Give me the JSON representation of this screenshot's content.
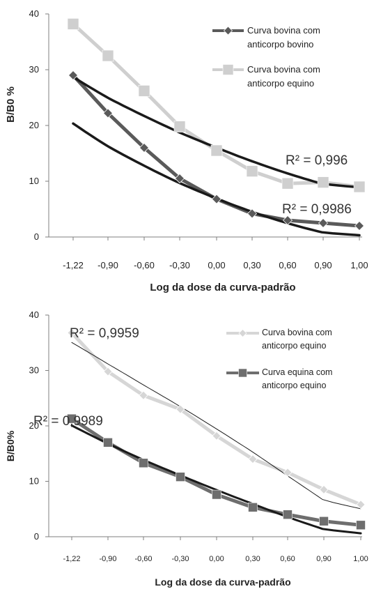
{
  "chart_data": [
    {
      "type": "line",
      "ylabel": "B/B0  %",
      "xlabel": "Log da dose da curva-padrão",
      "categories": [
        "-1,22",
        "-0,90",
        "-0,60",
        "-0,30",
        "0,00",
        "0,30",
        "0,60",
        "0,90",
        "1,00"
      ],
      "yticks": [
        "0",
        "10",
        "20",
        "30",
        "40"
      ],
      "ylim": [
        0,
        40
      ],
      "legend_position": "top-right",
      "series": [
        {
          "name": "Curva bovina com anticorpo bovino",
          "legend_lines": [
            "Curva bovina com",
            "anticorpo bovino"
          ],
          "marker": "diamond",
          "color": "#5a5a5a",
          "values": [
            29,
            22.2,
            16,
            10.5,
            6.8,
            4.2,
            3,
            2.5,
            2
          ]
        },
        {
          "name": "Curva bovina com anticorpo equino",
          "legend_lines": [
            "Curva bovina com",
            "anticorpo equino"
          ],
          "marker": "square",
          "color": "#cfcfcf",
          "values": [
            38.2,
            32.5,
            26.2,
            19.8,
            15.5,
            11.8,
            9.6,
            9.8,
            9
          ]
        }
      ],
      "trendlines": [
        {
          "color": "#1a1a1a",
          "width": 3.5,
          "coef": [
            1.9868,
            -8.5908,
            6.9156
          ],
          "x": [
            -1.22,
            -0.9,
            -0.6,
            -0.3,
            0.0,
            0.3,
            0.6,
            0.9,
            1.0
          ]
        },
        {
          "color": "#1a1a1a",
          "width": 3.5,
          "coef": [
            1.4714,
            -8.5906,
            16.0264
          ],
          "x": [
            -1.22,
            -0.9,
            -0.6,
            -0.3,
            0.0,
            0.3,
            0.6,
            0.9,
            1.0
          ]
        }
      ],
      "annotations": [
        "R² = 0,996",
        "R² = 0,9986"
      ]
    },
    {
      "type": "line",
      "ylabel": "B/B0%",
      "xlabel": "Log da dose da curva-padrão",
      "categories": [
        "-1,22",
        "-0,90",
        "-0,60",
        "-0,30",
        "0,00",
        "0,30",
        "0,60",
        "0,90",
        "1,00"
      ],
      "yticks": [
        "0",
        "10",
        "20",
        "30",
        "40"
      ],
      "ylim": [
        0,
        40
      ],
      "legend_position": "top-right",
      "series": [
        {
          "name": "Curva bovina com anticorpo equino",
          "legend_lines": [
            "Curva bovina com",
            "anticorpo equino"
          ],
          "marker": "diamond",
          "color": "#d6d6d6",
          "values": [
            36.8,
            29.8,
            25.5,
            23,
            18.2,
            14,
            11.6,
            8.5,
            5.8
          ]
        },
        {
          "name": "Curva equina com anticorpo equino",
          "legend_lines": [
            "Curva equina com",
            "anticorpo equino"
          ],
          "marker": "square",
          "color": "#6e6e6e",
          "values": [
            21.3,
            17,
            13.3,
            10.8,
            7.6,
            5.3,
            4,
            2.8,
            2.1
          ]
        }
      ],
      "trendlines": [
        {
          "color": "#1a1a1a",
          "width": 1,
          "coef": [
            -0.7167,
            -13.6786,
            19.4389
          ],
          "x": [
            -1.22,
            -0.9,
            -0.6,
            -0.3,
            0.0,
            0.3,
            0.6,
            0.9,
            1.0
          ]
        },
        {
          "color": "#1a1a1a",
          "width": 3,
          "coef": [
            0.7804,
            -8.5914,
            8.4328
          ],
          "x": [
            -1.22,
            -0.9,
            -0.6,
            -0.3,
            0.0,
            0.3,
            0.6,
            0.9,
            1.0
          ]
        }
      ],
      "annotations": [
        "R² = 0,9959",
        "R² = 0,9989"
      ]
    }
  ]
}
